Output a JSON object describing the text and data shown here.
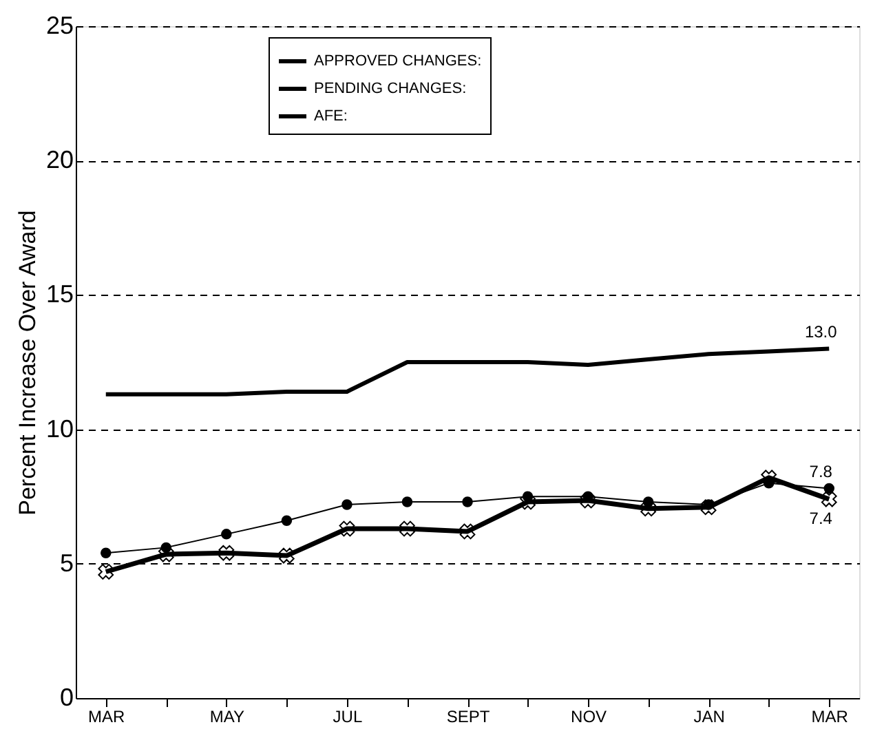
{
  "chart_data": {
    "type": "line",
    "ylabel": "Percent Increase Over Award",
    "categories": [
      "MAR",
      null,
      "MAY",
      null,
      "JUL",
      null,
      "SEPT",
      null,
      "NOV",
      null,
      "JAN",
      null,
      "MAR"
    ],
    "ylim": [
      0,
      25
    ],
    "yticks": [
      0,
      5,
      10,
      15,
      20,
      25
    ],
    "grid": "y",
    "legend": "top",
    "series": [
      {
        "name": "APPROVED CHANGES:",
        "color": "#000000",
        "marker": "cross",
        "values": [
          4.7,
          5.35,
          5.4,
          5.3,
          6.3,
          6.3,
          6.2,
          7.3,
          7.35,
          7.05,
          7.1,
          8.2,
          7.4
        ],
        "value_labels": [
          null,
          null,
          null,
          null,
          null,
          null,
          null,
          null,
          null,
          null,
          null,
          null,
          "7.4"
        ]
      },
      {
        "name": "PENDING CHANGES:",
        "color": "#000000",
        "marker": "circle",
        "values": [
          5.4,
          5.6,
          6.1,
          6.6,
          7.2,
          7.3,
          7.3,
          7.5,
          7.5,
          7.3,
          7.2,
          8.0,
          7.8
        ],
        "value_labels": [
          null,
          null,
          null,
          null,
          null,
          null,
          null,
          null,
          null,
          null,
          null,
          null,
          "7.8"
        ]
      },
      {
        "name": "AFE:",
        "color": "#000000",
        "marker": "none",
        "values": [
          11.3,
          11.3,
          11.3,
          11.4,
          11.4,
          12.5,
          12.5,
          12.5,
          12.4,
          12.6,
          12.8,
          12.9,
          13.0
        ],
        "value_labels": [
          null,
          null,
          null,
          null,
          null,
          null,
          null,
          null,
          null,
          null,
          null,
          null,
          "13.0"
        ]
      }
    ]
  }
}
